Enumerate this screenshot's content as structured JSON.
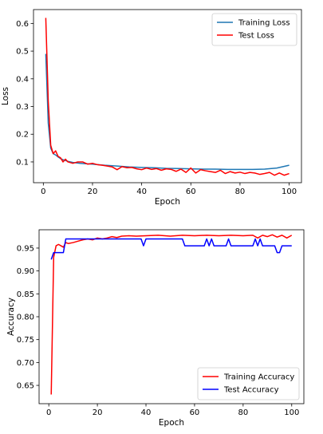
{
  "chart_data": [
    {
      "type": "line",
      "xlabel": "Epoch",
      "ylabel": "Loss",
      "xlim": [
        -4,
        105
      ],
      "ylim": [
        0.025,
        0.65
      ],
      "xticks": [
        0,
        20,
        40,
        60,
        80,
        100
      ],
      "yticks": [
        0.1,
        0.2,
        0.3,
        0.4,
        0.5,
        0.6
      ],
      "legend_position": "top-right",
      "series": [
        {
          "name": "Training Loss",
          "color": "#1f77b4",
          "points": [
            [
              1,
              0.49
            ],
            [
              2,
              0.24
            ],
            [
              3,
              0.15
            ],
            [
              4,
              0.13
            ],
            [
              5,
              0.125
            ],
            [
              6,
              0.118
            ],
            [
              7,
              0.112
            ],
            [
              8,
              0.108
            ],
            [
              10,
              0.102
            ],
            [
              12,
              0.098
            ],
            [
              15,
              0.095
            ],
            [
              18,
              0.093
            ],
            [
              20,
              0.092
            ],
            [
              25,
              0.088
            ],
            [
              30,
              0.085
            ],
            [
              35,
              0.082
            ],
            [
              40,
              0.08
            ],
            [
              45,
              0.079
            ],
            [
              50,
              0.077
            ],
            [
              55,
              0.076
            ],
            [
              60,
              0.075
            ],
            [
              65,
              0.074
            ],
            [
              70,
              0.074
            ],
            [
              75,
              0.073
            ],
            [
              80,
              0.073
            ],
            [
              85,
              0.073
            ],
            [
              90,
              0.074
            ],
            [
              95,
              0.078
            ],
            [
              100,
              0.088
            ]
          ]
        },
        {
          "name": "Test Loss",
          "color": "#ff0000",
          "points": [
            [
              1,
              0.62
            ],
            [
              2,
              0.32
            ],
            [
              3,
              0.16
            ],
            [
              4,
              0.13
            ],
            [
              5,
              0.14
            ],
            [
              6,
              0.12
            ],
            [
              7,
              0.115
            ],
            [
              8,
              0.1
            ],
            [
              9,
              0.11
            ],
            [
              10,
              0.1
            ],
            [
              12,
              0.095
            ],
            [
              14,
              0.1
            ],
            [
              16,
              0.1
            ],
            [
              18,
              0.092
            ],
            [
              20,
              0.095
            ],
            [
              22,
              0.09
            ],
            [
              24,
              0.088
            ],
            [
              26,
              0.085
            ],
            [
              28,
              0.082
            ],
            [
              30,
              0.072
            ],
            [
              32,
              0.083
            ],
            [
              34,
              0.079
            ],
            [
              36,
              0.08
            ],
            [
              38,
              0.075
            ],
            [
              40,
              0.072
            ],
            [
              42,
              0.078
            ],
            [
              44,
              0.073
            ],
            [
              46,
              0.076
            ],
            [
              48,
              0.07
            ],
            [
              50,
              0.075
            ],
            [
              52,
              0.073
            ],
            [
              54,
              0.066
            ],
            [
              56,
              0.074
            ],
            [
              58,
              0.062
            ],
            [
              60,
              0.078
            ],
            [
              62,
              0.06
            ],
            [
              64,
              0.072
            ],
            [
              66,
              0.068
            ],
            [
              68,
              0.065
            ],
            [
              70,
              0.062
            ],
            [
              72,
              0.07
            ],
            [
              74,
              0.058
            ],
            [
              76,
              0.065
            ],
            [
              78,
              0.06
            ],
            [
              80,
              0.063
            ],
            [
              82,
              0.058
            ],
            [
              84,
              0.062
            ],
            [
              86,
              0.06
            ],
            [
              88,
              0.055
            ],
            [
              90,
              0.058
            ],
            [
              92,
              0.062
            ],
            [
              94,
              0.052
            ],
            [
              96,
              0.06
            ],
            [
              98,
              0.052
            ],
            [
              100,
              0.058
            ]
          ]
        }
      ]
    },
    {
      "type": "line",
      "xlabel": "Epoch",
      "ylabel": "Accuracy",
      "xlim": [
        -4,
        105
      ],
      "ylim": [
        0.61,
        0.99
      ],
      "xticks": [
        0,
        20,
        40,
        60,
        80,
        100
      ],
      "yticks": [
        0.65,
        0.7,
        0.75,
        0.8,
        0.85,
        0.9,
        0.95
      ],
      "legend_position": "bottom-right",
      "series": [
        {
          "name": "Training Accuracy",
          "color": "#ff0000",
          "points": [
            [
              1,
              0.63
            ],
            [
              2,
              0.93
            ],
            [
              3,
              0.955
            ],
            [
              4,
              0.958
            ],
            [
              5,
              0.955
            ],
            [
              6,
              0.952
            ],
            [
              7,
              0.962
            ],
            [
              8,
              0.96
            ],
            [
              10,
              0.962
            ],
            [
              12,
              0.965
            ],
            [
              14,
              0.968
            ],
            [
              16,
              0.97
            ],
            [
              18,
              0.968
            ],
            [
              20,
              0.972
            ],
            [
              22,
              0.97
            ],
            [
              24,
              0.972
            ],
            [
              26,
              0.975
            ],
            [
              28,
              0.973
            ],
            [
              30,
              0.976
            ],
            [
              33,
              0.977
            ],
            [
              36,
              0.976
            ],
            [
              40,
              0.977
            ],
            [
              45,
              0.978
            ],
            [
              50,
              0.976
            ],
            [
              55,
              0.978
            ],
            [
              60,
              0.977
            ],
            [
              65,
              0.978
            ],
            [
              70,
              0.977
            ],
            [
              75,
              0.978
            ],
            [
              80,
              0.977
            ],
            [
              84,
              0.978
            ],
            [
              86,
              0.972
            ],
            [
              88,
              0.978
            ],
            [
              90,
              0.975
            ],
            [
              92,
              0.979
            ],
            [
              94,
              0.974
            ],
            [
              96,
              0.978
            ],
            [
              98,
              0.972
            ],
            [
              100,
              0.978
            ]
          ]
        },
        {
          "name": "Test Accuracy",
          "color": "#0000ff",
          "points": [
            [
              1,
              0.925
            ],
            [
              2,
              0.94
            ],
            [
              6,
              0.94
            ],
            [
              7,
              0.97
            ],
            [
              38,
              0.97
            ],
            [
              39,
              0.955
            ],
            [
              40,
              0.97
            ],
            [
              55,
              0.97
            ],
            [
              56,
              0.955
            ],
            [
              64,
              0.955
            ],
            [
              65,
              0.97
            ],
            [
              66,
              0.955
            ],
            [
              67,
              0.97
            ],
            [
              68,
              0.955
            ],
            [
              73,
              0.955
            ],
            [
              74,
              0.97
            ],
            [
              75,
              0.955
            ],
            [
              84,
              0.955
            ],
            [
              85,
              0.97
            ],
            [
              86,
              0.955
            ],
            [
              87,
              0.97
            ],
            [
              88,
              0.955
            ],
            [
              93,
              0.955
            ],
            [
              94,
              0.94
            ],
            [
              95,
              0.94
            ],
            [
              96,
              0.955
            ],
            [
              100,
              0.955
            ]
          ]
        }
      ]
    }
  ]
}
